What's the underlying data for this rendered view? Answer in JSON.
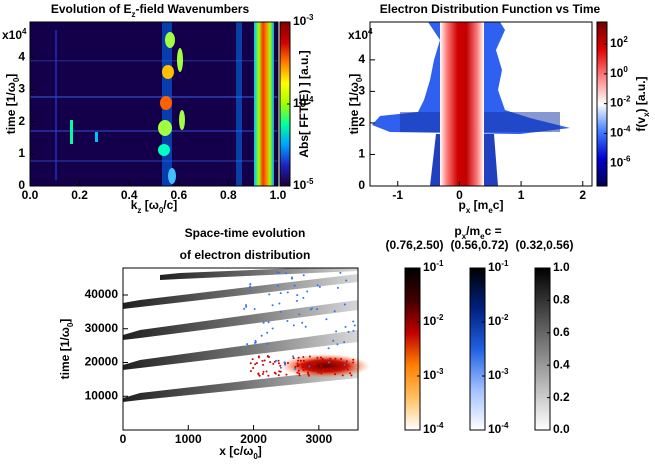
{
  "chart_data": [
    {
      "type": "heatmap",
      "title": [
        "Evolution of E",
        "z",
        "-field Wavenumbers"
      ],
      "xlabel": [
        "k",
        "z",
        " [ω",
        "0",
        "/c]"
      ],
      "ylabel": [
        "time [1/ω",
        "0",
        "]"
      ],
      "y_multiplier": [
        "x10",
        "4"
      ],
      "xlim": [
        0,
        1.0
      ],
      "xticks": [
        {
          "value": 0,
          "label": "0.0"
        },
        {
          "value": 0.2,
          "label": "0.2"
        },
        {
          "value": 0.4,
          "label": "0.4"
        },
        {
          "value": 0.6,
          "label": "0.6"
        },
        {
          "value": 0.8,
          "label": "0.8"
        },
        {
          "value": 1.0,
          "label": "1.0"
        }
      ],
      "ylim": [
        0,
        5.1
      ],
      "yticks": [
        0,
        1,
        2,
        3,
        4
      ],
      "colorbar": {
        "label": "Abs[ FFT(E) ] [a.u.]",
        "log": true,
        "lim": [
          1e-05,
          0.001
        ],
        "colors": [
          "#1a0030",
          "#2020c0",
          "#00a0ff",
          "#00ffa0",
          "#a0ff00",
          "#ffff00",
          "#ff8000",
          "#d00000",
          "#800000"
        ],
        "ticks": [
          {
            "value": 0.001,
            "label": [
              "10",
              "-3"
            ]
          },
          {
            "value": 0.0001,
            "label": [
              "10",
              "-4"
            ]
          },
          {
            "value": 1e-05,
            "label": [
              "10",
              "-5"
            ]
          }
        ]
      }
    },
    {
      "type": "heatmap",
      "title": [
        "Electron Distribution Function vs Time"
      ],
      "xlabel": [
        "p",
        "x",
        " [m",
        "e",
        "c]"
      ],
      "ylabel": [
        "time [1/ω",
        "0",
        "]"
      ],
      "y_multiplier": [
        "x10",
        "4"
      ],
      "xlim": [
        -1.45,
        2.15
      ],
      "xticks": [
        -1,
        0,
        1,
        2
      ],
      "ylim": [
        0,
        5.2
      ],
      "yticks": [
        0,
        1,
        2,
        3,
        4
      ],
      "colorbar": {
        "label": [
          "f(v",
          "x",
          ") [a.u.]"
        ],
        "log": true,
        "lim": [
          3e-08,
          3000
        ],
        "colors": [
          "#000050",
          "#0000d0",
          "#4080ff",
          "#ffffff",
          "#ff8080",
          "#e00000",
          "#700000"
        ],
        "ticks": [
          {
            "value": 100,
            "label": [
              "10",
              "2"
            ]
          },
          {
            "value": 1,
            "label": [
              "10",
              "0"
            ]
          },
          {
            "value": 0.01,
            "label": [
              "10",
              "-2"
            ]
          },
          {
            "value": 0.0001,
            "label": [
              "10",
              "-4"
            ]
          },
          {
            "value": 1e-06,
            "label": [
              "10",
              "-6"
            ]
          }
        ]
      }
    },
    {
      "type": "heatmap",
      "title": [
        "Space-time evolution",
        "of electron distribution"
      ],
      "xlabel": [
        "x [c/ω",
        "0",
        "]"
      ],
      "ylabel": [
        "time [1/ω",
        "0",
        "]"
      ],
      "xlim": [
        0,
        3600
      ],
      "xticks": [
        0,
        1000,
        2000,
        3000
      ],
      "ylim": [
        0,
        48000
      ],
      "yticks": [
        10000,
        20000,
        30000,
        40000
      ],
      "colorbar_header": [
        "p",
        "x",
        "/m",
        "e",
        "c ="
      ],
      "colorbars": [
        {
          "label": "(0.76,2.50)",
          "log": true,
          "lim": [
            0.0001,
            0.1
          ],
          "colors": [
            "#ffffff",
            "#ffc060",
            "#ff8000",
            "#c00000",
            "#400000",
            "#000000"
          ],
          "ticks": [
            {
              "value": 0.1,
              "label": [
                "10",
                "-1"
              ]
            },
            {
              "value": 0.01,
              "label": [
                "10",
                "-2"
              ]
            },
            {
              "value": 0.001,
              "label": [
                "10",
                "-3"
              ]
            },
            {
              "value": 0.0001,
              "label": [
                "10",
                "-4"
              ]
            }
          ]
        },
        {
          "label": "(0.56,0.72)",
          "log": true,
          "lim": [
            0.0001,
            0.1
          ],
          "colors": [
            "#ffffff",
            "#a0c0ff",
            "#2060e0",
            "#002080",
            "#000000"
          ],
          "ticks": [
            {
              "value": 0.1,
              "label": [
                "10",
                "-1"
              ]
            },
            {
              "value": 0.01,
              "label": [
                "10",
                "-2"
              ]
            },
            {
              "value": 0.001,
              "label": [
                "10",
                "-3"
              ]
            },
            {
              "value": 0.0001,
              "label": [
                "10",
                "-4"
              ]
            }
          ]
        },
        {
          "label": "(0.32,0.56)",
          "log": false,
          "lim": [
            0,
            1.0
          ],
          "colors": [
            "#ffffff",
            "#000000"
          ],
          "ticks": [
            {
              "value": 1.0,
              "label": "1.0"
            },
            {
              "value": 0.8,
              "label": "0.8"
            },
            {
              "value": 0.6,
              "label": "0.6"
            },
            {
              "value": 0.4,
              "label": "0.4"
            },
            {
              "value": 0.2,
              "label": "0.2"
            },
            {
              "value": 0,
              "label": "0.0"
            }
          ]
        }
      ]
    }
  ]
}
